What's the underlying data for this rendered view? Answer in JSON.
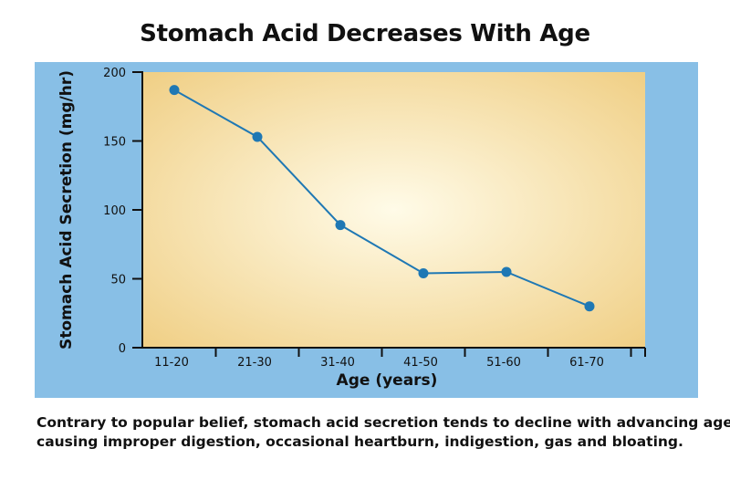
{
  "chart_data": {
    "type": "line",
    "title": "Stomach Acid Decreases With Age",
    "xlabel": "Age (years)",
    "ylabel": "Stomach Acid Secretion (mg/hr)",
    "categories": [
      "11-20",
      "21-30",
      "31-40",
      "41-50",
      "51-60",
      "61-70"
    ],
    "series": [
      {
        "values": [
          187,
          153,
          89,
          54,
          55,
          30
        ]
      }
    ],
    "ylim": [
      0,
      200
    ],
    "yticks": [
      "0",
      "50",
      "100",
      "150",
      "200"
    ],
    "grid": false,
    "legend": "none",
    "colors": {
      "panel": "#88bfe6",
      "plot_center": "#fffbe8",
      "plot_edge": "#f0cf85",
      "line": "#1f78b4",
      "marker": "#1f78b4"
    }
  },
  "caption": {
    "line1": "Contrary to popular belief, stomach acid secretion tends to decline with advancing age,",
    "line2": "causing improper digestion, occasional heartburn, indigestion, gas and bloating."
  }
}
